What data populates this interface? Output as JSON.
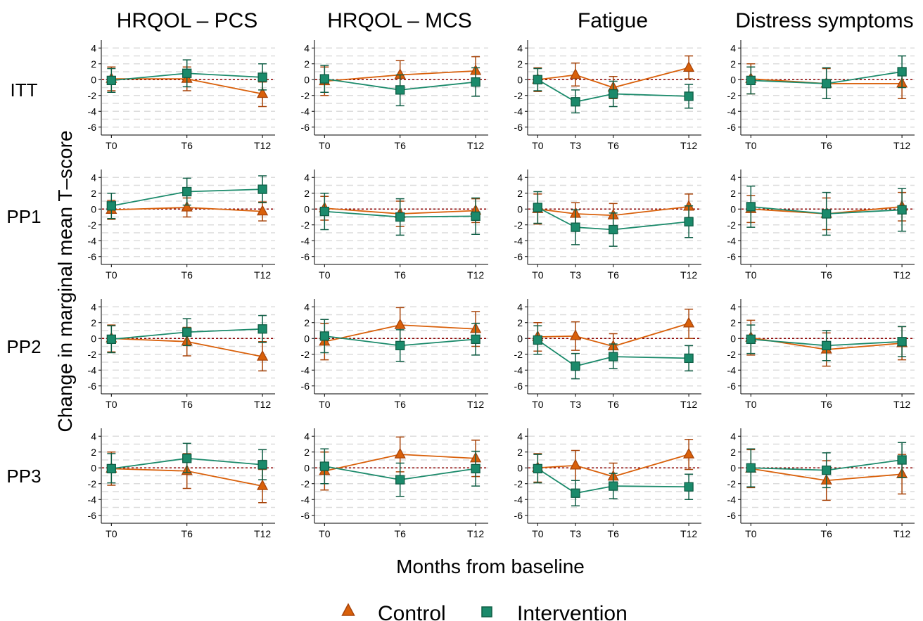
{
  "chart_data": {
    "type": "line",
    "ylabel": "Change in marginal mean T–score",
    "xlabel": "Months from baseline",
    "ylim": [
      -7,
      5
    ],
    "yticks": [
      -6,
      -4,
      -2,
      0,
      2,
      4
    ],
    "x_months": {
      "T0": 0,
      "T3": 3,
      "T6": 6,
      "T12": 12
    },
    "xlim": [
      -0.8,
      13.0
    ],
    "reference_line": 0,
    "grid": "horizontal dashed",
    "legend_position": "bottom",
    "columns": [
      "HRQOL – PCS",
      "HRQOL – MCS",
      "Fatigue",
      "Distress symptoms"
    ],
    "rows": [
      "ITT",
      "PP1",
      "PP2",
      "PP3"
    ],
    "column_x_ticks": [
      [
        "T0",
        "T6",
        "T12"
      ],
      [
        "T0",
        "T6",
        "T12"
      ],
      [
        "T0",
        "T3",
        "T6",
        "T12"
      ],
      [
        "T0",
        "T6",
        "T12"
      ]
    ],
    "series_styles": [
      {
        "name": "Control",
        "color": "#d9600a",
        "edge": "#a8440a",
        "marker": "triangle"
      },
      {
        "name": "Intervention",
        "color": "#1b8a6b",
        "edge": "#0f5e45",
        "marker": "square"
      }
    ],
    "panels": [
      [
        {
          "control": {
            "y": [
              0.1,
              0.1,
              -1.8
            ],
            "lo": [
              -1.4,
              -1.4,
              -3.4
            ],
            "hi": [
              1.6,
              1.6,
              -0.3
            ]
          },
          "intervention": {
            "y": [
              -0.1,
              0.8,
              0.3
            ],
            "lo": [
              -1.6,
              -0.9,
              -1.3
            ],
            "hi": [
              1.4,
              2.5,
              2.0
            ]
          }
        },
        {
          "control": {
            "y": [
              -0.2,
              0.6,
              1.1
            ],
            "lo": [
              -2.0,
              -1.2,
              -0.6
            ],
            "hi": [
              1.6,
              2.4,
              2.9
            ]
          },
          "intervention": {
            "y": [
              0.1,
              -1.3,
              -0.3
            ],
            "lo": [
              -1.6,
              -3.3,
              -2.1
            ],
            "hi": [
              1.8,
              0.6,
              1.5
            ]
          }
        },
        {
          "control": {
            "y": [
              0.0,
              0.6,
              -1.0,
              1.5
            ],
            "lo": [
              -1.5,
              -0.8,
              -2.4,
              0.1
            ],
            "hi": [
              1.5,
              2.1,
              0.4,
              3.0
            ]
          },
          "intervention": {
            "y": [
              0.0,
              -2.8,
              -1.8,
              -2.1
            ],
            "lo": [
              -1.4,
              -4.2,
              -3.4,
              -3.6
            ],
            "hi": [
              1.4,
              -1.3,
              -0.2,
              -0.6
            ]
          }
        },
        {
          "control": {
            "y": [
              0.1,
              -0.5,
              -0.5
            ],
            "lo": [
              -1.8,
              -2.4,
              -2.4
            ],
            "hi": [
              2.0,
              1.4,
              1.4
            ]
          },
          "intervention": {
            "y": [
              -0.1,
              -0.5,
              1.0
            ],
            "lo": [
              -1.8,
              -2.4,
              -1.0
            ],
            "hi": [
              1.6,
              1.5,
              3.0
            ]
          }
        }
      ],
      [
        {
          "control": {
            "y": [
              -0.1,
              0.2,
              -0.3
            ],
            "lo": [
              -1.3,
              -1.0,
              -1.5
            ],
            "hi": [
              1.1,
              1.4,
              0.9
            ]
          },
          "intervention": {
            "y": [
              0.4,
              2.2,
              2.5
            ],
            "lo": [
              -1.2,
              0.5,
              0.8
            ],
            "hi": [
              2.0,
              3.9,
              4.2
            ]
          }
        },
        {
          "control": {
            "y": [
              0.1,
              -0.6,
              -0.2
            ],
            "lo": [
              -1.4,
              -2.2,
              -1.7
            ],
            "hi": [
              1.6,
              1.0,
              1.3
            ]
          },
          "intervention": {
            "y": [
              -0.3,
              -1.0,
              -0.9
            ],
            "lo": [
              -2.6,
              -3.3,
              -3.2
            ],
            "hi": [
              2.0,
              1.3,
              1.4
            ]
          }
        },
        {
          "control": {
            "y": [
              0.0,
              -0.6,
              -0.8,
              0.3
            ],
            "lo": [
              -1.9,
              -2.0,
              -2.3,
              -1.3
            ],
            "hi": [
              1.9,
              0.8,
              0.7,
              1.9
            ]
          },
          "intervention": {
            "y": [
              0.2,
              -2.3,
              -2.6,
              -1.6
            ],
            "lo": [
              -1.8,
              -4.5,
              -4.7,
              -3.6
            ],
            "hi": [
              2.2,
              -0.1,
              -0.5,
              0.4
            ]
          }
        },
        {
          "control": {
            "y": [
              0.0,
              -0.6,
              0.3
            ],
            "lo": [
              -1.7,
              -2.6,
              -1.5
            ],
            "hi": [
              1.7,
              1.4,
              2.1
            ]
          },
          "intervention": {
            "y": [
              0.3,
              -0.6,
              -0.1
            ],
            "lo": [
              -2.3,
              -3.3,
              -2.8
            ],
            "hi": [
              2.9,
              2.1,
              2.6
            ]
          }
        }
      ],
      [
        {
          "control": {
            "y": [
              0.0,
              -0.4,
              -2.3
            ],
            "lo": [
              -1.7,
              -2.2,
              -4.1
            ],
            "hi": [
              1.7,
              1.4,
              -0.4
            ]
          },
          "intervention": {
            "y": [
              -0.1,
              0.8,
              1.2
            ],
            "lo": [
              -1.8,
              -0.9,
              -0.5
            ],
            "hi": [
              1.6,
              2.5,
              2.9
            ]
          }
        },
        {
          "control": {
            "y": [
              -0.4,
              1.7,
              1.2
            ],
            "lo": [
              -2.7,
              -0.6,
              -1.0
            ],
            "hi": [
              1.9,
              3.9,
              3.4
            ]
          },
          "intervention": {
            "y": [
              0.3,
              -0.9,
              -0.1
            ],
            "lo": [
              -1.8,
              -2.9,
              -2.1
            ],
            "hi": [
              2.4,
              1.1,
              1.9
            ]
          }
        },
        {
          "control": {
            "y": [
              0.2,
              0.3,
              -1.0,
              1.9
            ],
            "lo": [
              -1.6,
              -1.5,
              -2.6,
              0.0
            ],
            "hi": [
              2.0,
              2.1,
              0.6,
              3.7
            ]
          },
          "intervention": {
            "y": [
              -0.2,
              -3.5,
              -2.3,
              -2.5
            ],
            "lo": [
              -2.0,
              -5.1,
              -3.8,
              -4.1
            ],
            "hi": [
              1.6,
              -1.9,
              -0.7,
              -0.9
            ]
          }
        },
        {
          "control": {
            "y": [
              0.1,
              -1.4,
              -0.6
            ],
            "lo": [
              -2.1,
              -3.5,
              -2.7
            ],
            "hi": [
              2.3,
              0.7,
              1.5
            ]
          },
          "intervention": {
            "y": [
              -0.1,
              -0.9,
              -0.4
            ],
            "lo": [
              -1.9,
              -2.8,
              -2.3
            ],
            "hi": [
              1.7,
              1.0,
              1.5
            ]
          }
        }
      ],
      [
        {
          "control": {
            "y": [
              -0.1,
              -0.4,
              -2.3
            ],
            "lo": [
              -2.2,
              -2.6,
              -4.4
            ],
            "hi": [
              2.0,
              1.8,
              -0.2
            ]
          },
          "intervention": {
            "y": [
              -0.1,
              1.2,
              0.4
            ],
            "lo": [
              -1.9,
              -0.6,
              -1.5
            ],
            "hi": [
              1.8,
              3.1,
              2.3
            ]
          }
        },
        {
          "control": {
            "y": [
              -0.4,
              1.7,
              1.2
            ],
            "lo": [
              -2.8,
              -0.5,
              -1.1
            ],
            "hi": [
              2.0,
              3.9,
              3.5
            ]
          },
          "intervention": {
            "y": [
              0.2,
              -1.5,
              -0.1
            ],
            "lo": [
              -2.0,
              -3.6,
              -2.3
            ],
            "hi": [
              2.4,
              0.6,
              2.1
            ]
          }
        },
        {
          "control": {
            "y": [
              0.0,
              0.3,
              -1.1,
              1.7
            ],
            "lo": [
              -1.8,
              -1.6,
              -2.8,
              -0.2
            ],
            "hi": [
              1.8,
              2.2,
              0.6,
              3.6
            ]
          },
          "intervention": {
            "y": [
              -0.1,
              -3.2,
              -2.3,
              -2.4
            ],
            "lo": [
              -1.9,
              -4.8,
              -3.9,
              -4.0
            ],
            "hi": [
              1.7,
              -1.6,
              -0.7,
              -0.8
            ]
          }
        },
        {
          "control": {
            "y": [
              -0.1,
              -1.6,
              -0.8
            ],
            "lo": [
              -2.5,
              -4.1,
              -3.3
            ],
            "hi": [
              2.3,
              0.9,
              1.7
            ]
          },
          "intervention": {
            "y": [
              0.0,
              -0.3,
              1.0
            ],
            "lo": [
              -2.4,
              -2.5,
              -1.2
            ],
            "hi": [
              2.4,
              1.9,
              3.2
            ]
          }
        }
      ]
    ]
  }
}
